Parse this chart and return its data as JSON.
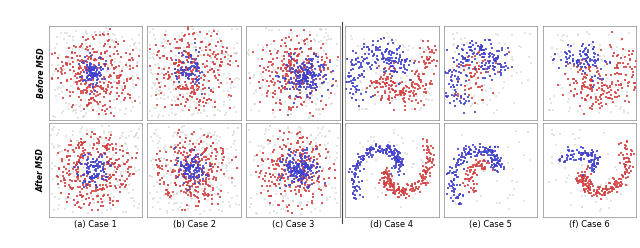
{
  "n_cases": 6,
  "n_rows": 2,
  "row_labels": [
    "Before MSD",
    "After MSD"
  ],
  "case_labels": [
    "(a) Case 1",
    "(b) Case 2",
    "(c) Case 3",
    "(d) Case 4",
    "(e) Case 5",
    "(f) Case 6"
  ],
  "red_color": "#d44040",
  "blue_color": "#4040cc",
  "gray_color": "#cccccc",
  "pink_color": "#e8b0b0",
  "light_blue_color": "#b0b0e0",
  "point_size": 3.0,
  "alpha": 0.85,
  "fig_width": 6.4,
  "fig_height": 2.48
}
